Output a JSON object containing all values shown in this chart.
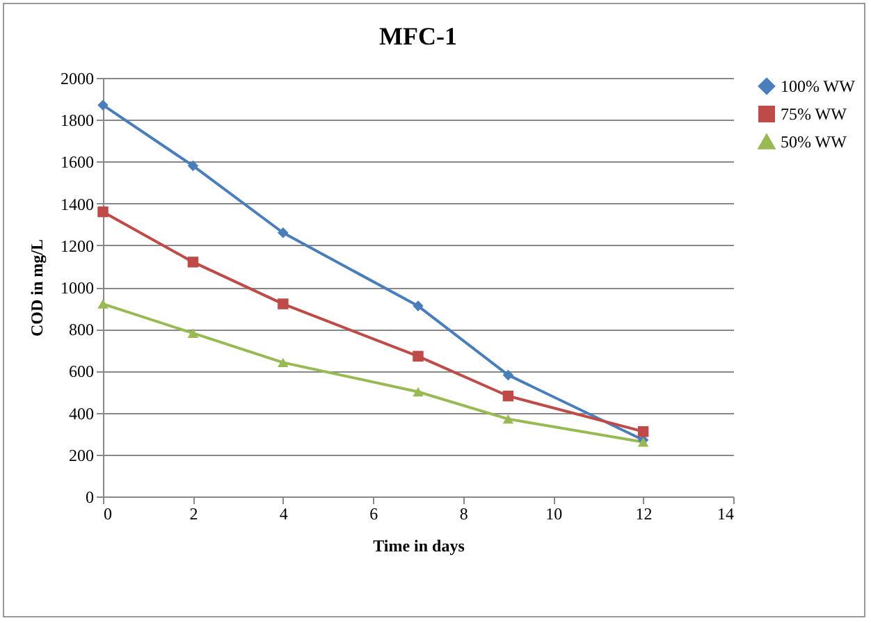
{
  "chart_data": {
    "type": "line",
    "title": "MFC-1",
    "xlabel": "Time in days",
    "ylabel": "COD in mg/L",
    "x": [
      0,
      2,
      4,
      7,
      9,
      12
    ],
    "series": [
      {
        "name": "100% WW",
        "color": "#4a7ebb",
        "marker": "diamond",
        "values": [
          1870,
          1580,
          1260,
          910,
          580,
          270
        ]
      },
      {
        "name": "75% WW",
        "color": "#be4b48",
        "marker": "square",
        "values": [
          1360,
          1120,
          920,
          670,
          480,
          310
        ]
      },
      {
        "name": "50% WW",
        "color": "#98b954",
        "marker": "triangle",
        "values": [
          920,
          780,
          640,
          500,
          370,
          260
        ]
      }
    ],
    "xlim": [
      0,
      14
    ],
    "xticks": [
      0,
      2,
      4,
      6,
      8,
      10,
      12,
      14
    ],
    "ylim": [
      0,
      2000
    ],
    "yticks": [
      0,
      200,
      400,
      600,
      800,
      1000,
      1200,
      1400,
      1600,
      1800,
      2000
    ],
    "grid": "y",
    "legend": "right",
    "line_style": "solid"
  }
}
